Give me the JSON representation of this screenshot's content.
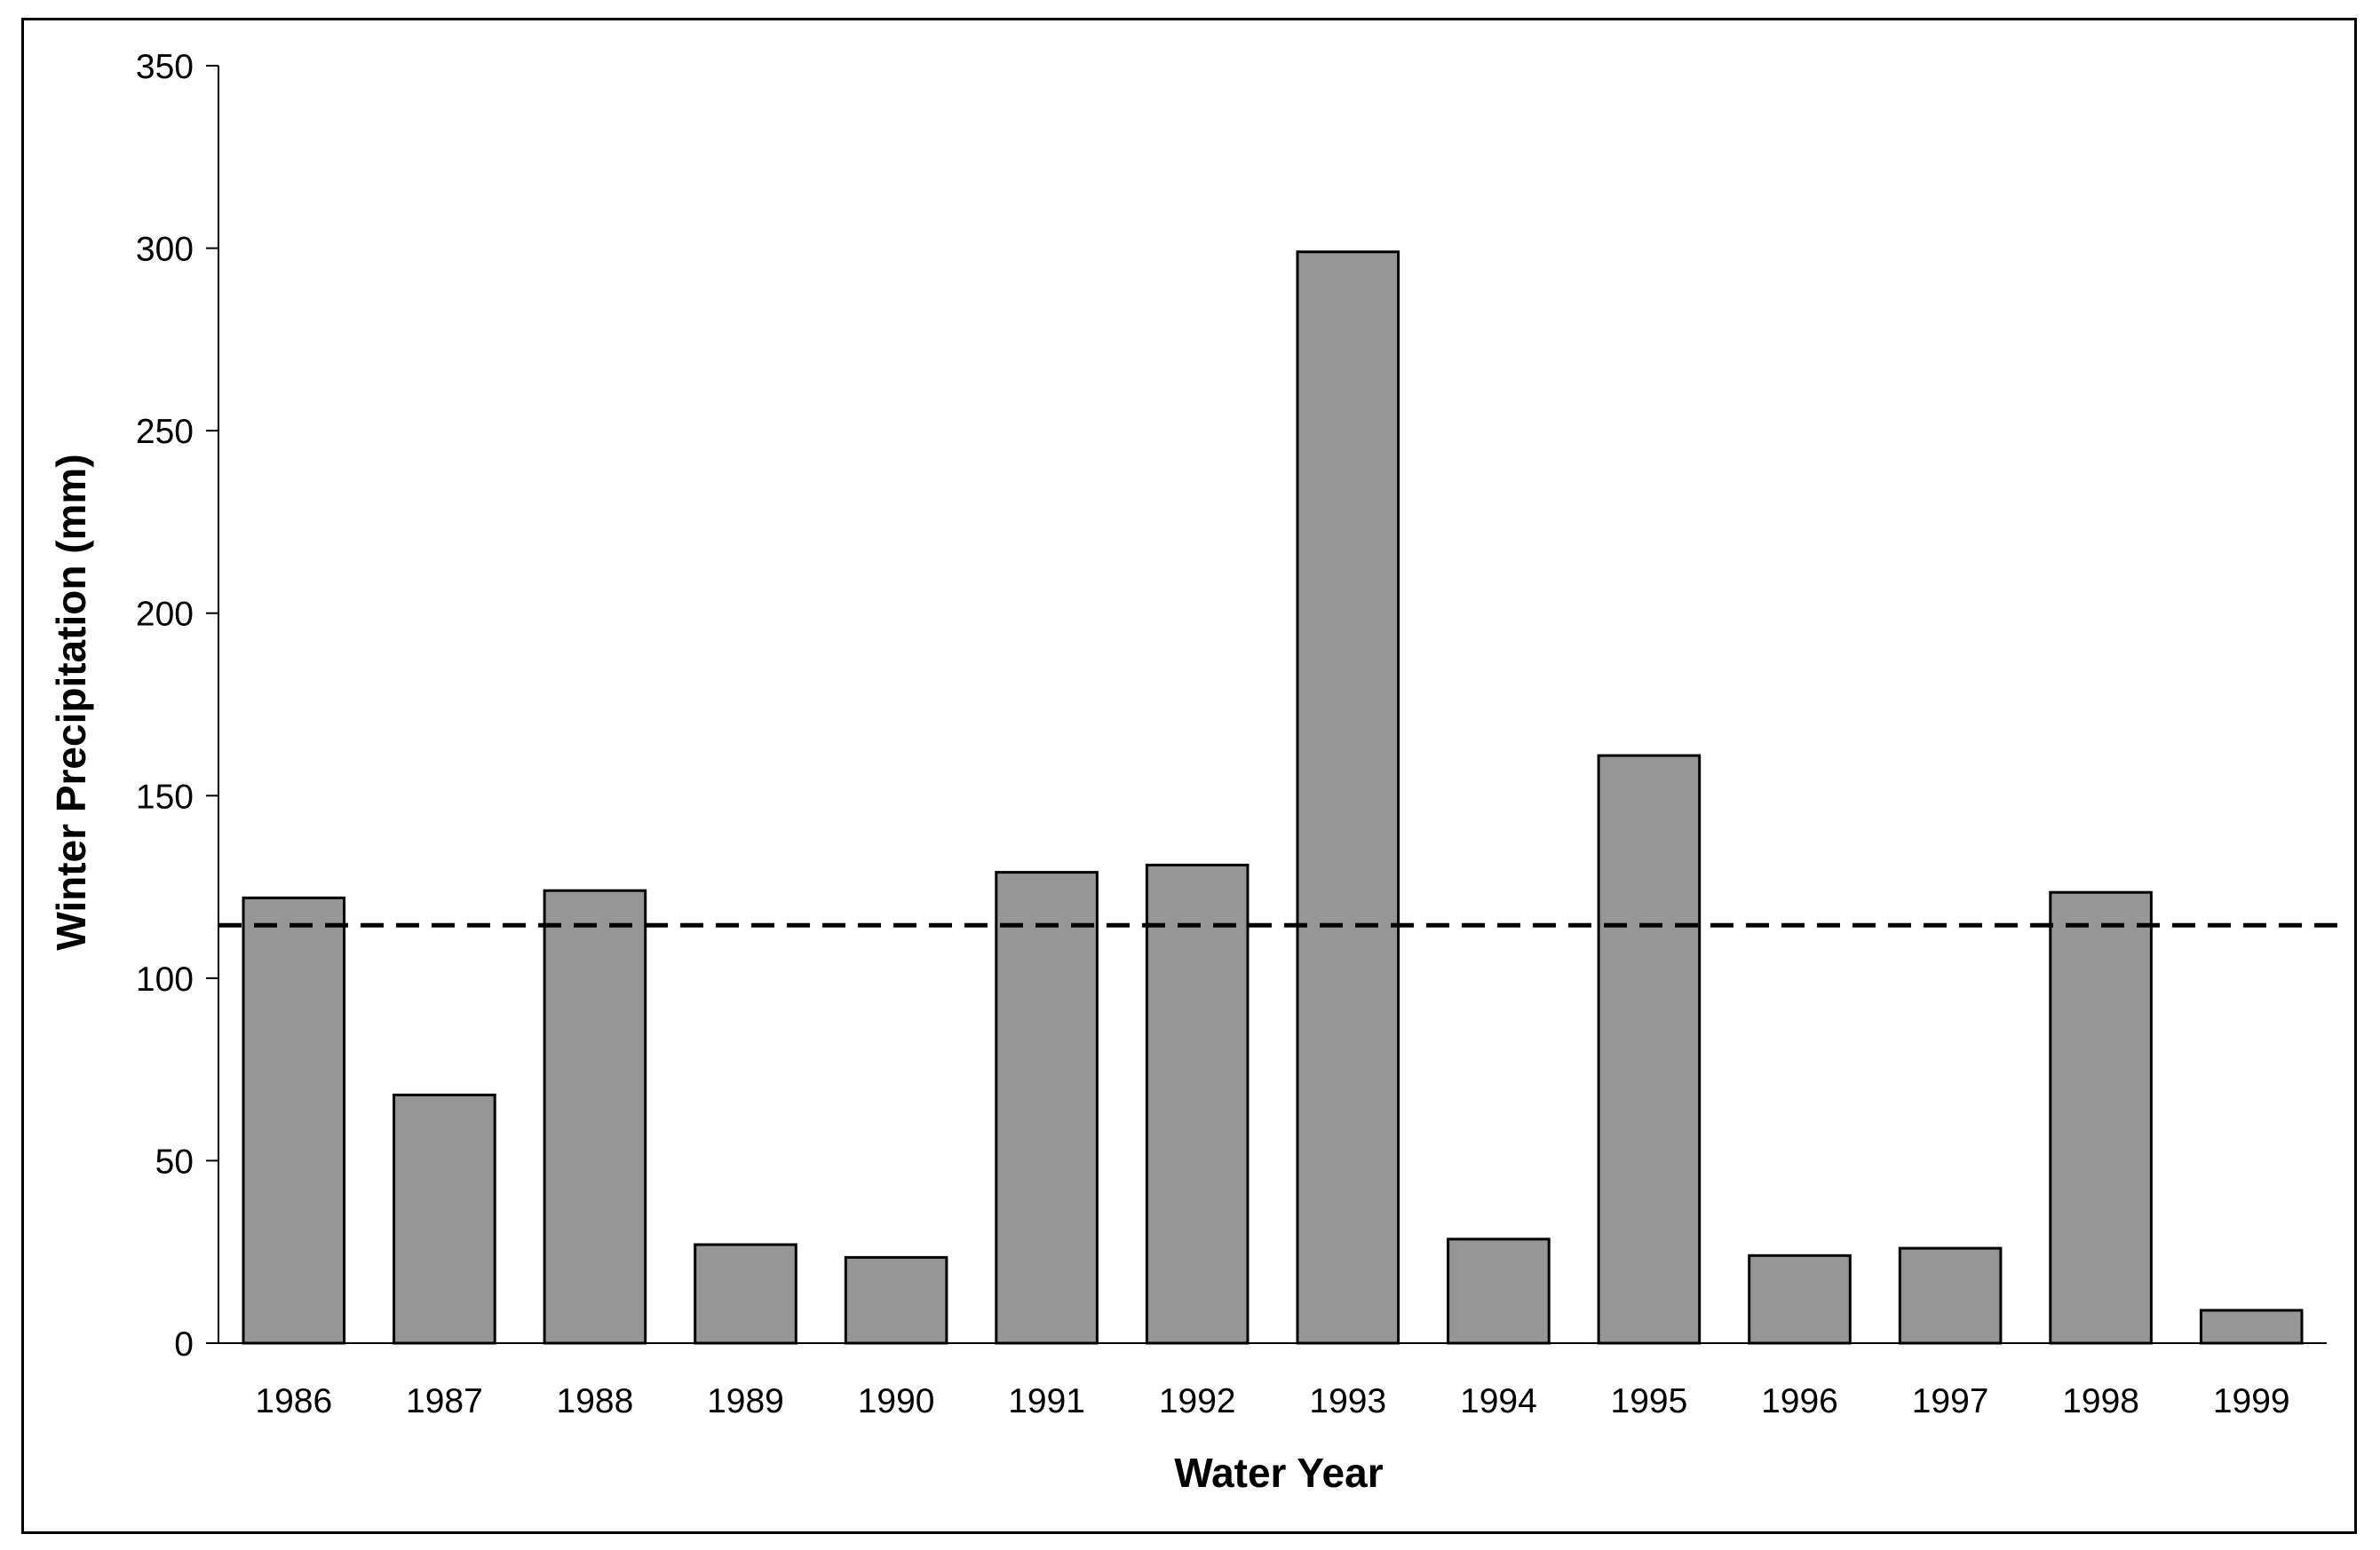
{
  "chart_data": {
    "type": "bar",
    "categories": [
      "1986",
      "1987",
      "1988",
      "1989",
      "1990",
      "1991",
      "1992",
      "1993",
      "1994",
      "1995",
      "1996",
      "1997",
      "1998",
      "1999"
    ],
    "values": [
      122,
      68,
      124,
      27,
      23.5,
      129,
      131,
      299,
      28.5,
      161,
      24,
      26,
      123.5,
      9
    ],
    "title": "",
    "xlabel": "Water Year",
    "ylabel": "Winter Precipitation (mm)",
    "ylim": [
      0,
      350
    ],
    "yticks": [
      0,
      50,
      100,
      150,
      200,
      250,
      300,
      350
    ],
    "reference_line": {
      "value": 114.5,
      "style": "dashed",
      "color": "#000000"
    },
    "bar_color": "#969696",
    "bar_edge_color": "#000000",
    "grid": false,
    "legend": "none"
  }
}
